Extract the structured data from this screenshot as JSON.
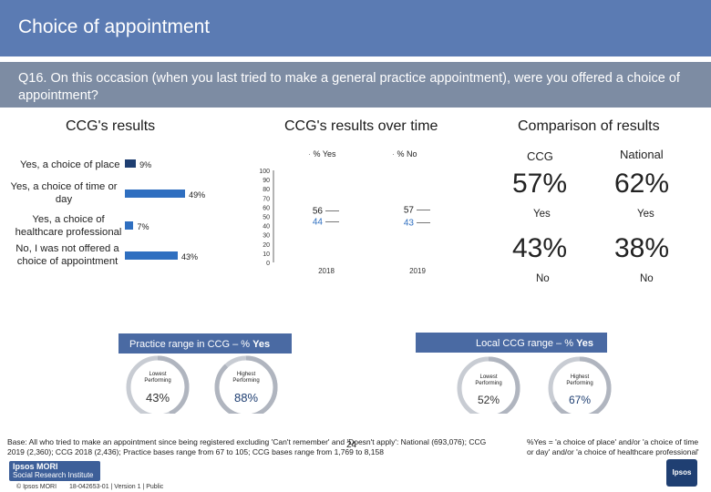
{
  "header": {
    "title": "Choice of appointment"
  },
  "question": {
    "text": "Q16. On this occasion (when you last tried to make a general practice appointment), were you offered a choice of appointment?"
  },
  "colors": {
    "title_bg": "#5b7bb3",
    "question_bg": "#7d8ca3",
    "bar": "#2f6fc0",
    "bar_dark": "#1f3f72",
    "ring": "#b9bdc5",
    "ring_accent": "#1f3f72"
  },
  "chart_data": [
    {
      "type": "bar",
      "orientation": "horizontal",
      "title": "CCG's results",
      "categories": [
        "Yes, a choice of place",
        "Yes, a choice of time or day",
        "Yes, a choice of healthcare professional",
        "No, I was not offered a choice of appointment"
      ],
      "values": [
        9,
        49,
        7,
        43
      ],
      "labels": [
        "9%",
        "49%",
        "7%",
        "43%"
      ]
    },
    {
      "type": "line",
      "title": "CCG's results over time",
      "legend": [
        "% Yes",
        "% No"
      ],
      "categories": [
        "2018",
        "2019"
      ],
      "series": [
        {
          "name": "% Yes",
          "values": [
            56,
            57
          ]
        },
        {
          "name": "% No",
          "values": [
            44,
            43
          ]
        }
      ],
      "yticks": [
        "100",
        "90",
        "80",
        "70",
        "60",
        "50",
        "40",
        "30",
        "20",
        "10",
        "0"
      ],
      "ylim": [
        0,
        100
      ]
    }
  ],
  "comparison": {
    "title": "Comparison of results",
    "col1": "CCG",
    "col2": "National",
    "yes_ccg": "57%",
    "yes_nat": "62%",
    "yes_label_1": "Yes",
    "yes_label_2": "Yes",
    "no_ccg": "43%",
    "no_nat": "38%",
    "no_label_1": "No",
    "no_label_2": "No"
  },
  "practice_range": {
    "title_prefix": "Practice range in CCG – % ",
    "title_bold": "Yes",
    "lowest_label": "Lowest Performing",
    "lowest_value": "43%",
    "lowest_fraction": 0.43,
    "highest_label": "Highest Performing",
    "highest_value": "88%",
    "highest_fraction": 0.88
  },
  "local_range": {
    "title_prefix": "Local CCG range – % ",
    "title_bold": "Yes",
    "lowest_label": "Lowest Performing",
    "lowest_value": "52%",
    "lowest_fraction": 0.52,
    "highest_label": "Highest Performing",
    "highest_value": "67%",
    "highest_fraction": 0.67
  },
  "footer": {
    "base_text": "Base: All who tried to make an appointment since being registered excluding 'Can't remember' and 'Doesn't apply': National (693,076); CCG 2019 (2,360); CCG 2018 (2,436); Practice bases range from 67 to 105; CCG bases range from 1,769 to 8,158",
    "note": "%Yes = 'a choice of place' and/or 'a choice of time or day' and/or 'a choice of healthcare professional'",
    "page_number": "24",
    "brand_line1": "Ipsos MORI",
    "brand_line2": "Social Research Institute",
    "copyright": "© Ipsos MORI",
    "job": "18-042653-01 | Version 1 | Public",
    "logo_text": "Ipsos"
  }
}
